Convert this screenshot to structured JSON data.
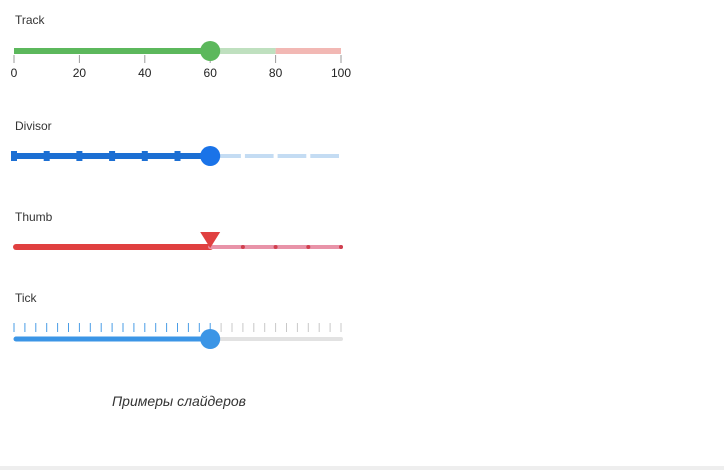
{
  "sliders": {
    "track": {
      "label": "Track",
      "min": 0,
      "max": 100,
      "value": 60,
      "secondary_value": 80,
      "tick_labels": [
        "0",
        "20",
        "40",
        "60",
        "80",
        "100"
      ],
      "colors": {
        "active": "#5cb85c",
        "inactive_near": "#bfe0bf",
        "inactive_far": "#f2b8b4",
        "thumb": "#5cb85c"
      }
    },
    "divisor": {
      "label": "Divisor",
      "min": 0,
      "max": 100,
      "value": 60,
      "interval": 10,
      "colors": {
        "active": "#1c6fd3",
        "inactive": "#c4dcf3",
        "thumb": "#1a73e8"
      }
    },
    "thumb": {
      "label": "Thumb",
      "min": 0,
      "max": 100,
      "value": 60,
      "interval": 10,
      "thumb_shape": "triangle-down",
      "colors": {
        "active": "#e04040",
        "inactive": "#e893a8",
        "dot": "#d0404f",
        "thumb": "#e04040"
      }
    },
    "tick": {
      "label": "Tick",
      "min": 0,
      "max": 100,
      "value": 60,
      "tick_count": 31,
      "colors": {
        "active": "#3b95e6",
        "inactive": "#e2e2e2",
        "tick_active": "#4a9de6",
        "tick_inactive": "#c8c8c8",
        "thumb": "#3b95e6"
      }
    }
  },
  "caption": "Примеры слайдеров"
}
